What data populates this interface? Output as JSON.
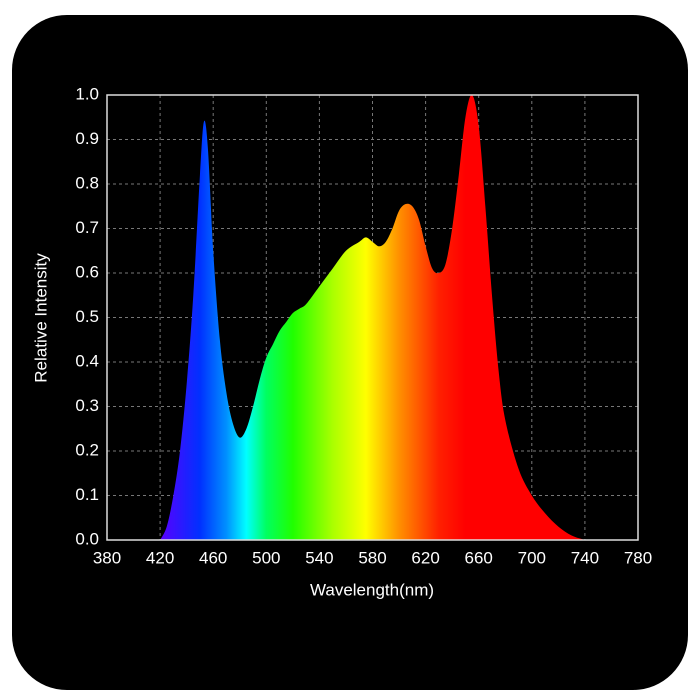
{
  "chart_data": {
    "type": "area",
    "xlabel": "Wavelength(nm)",
    "ylabel": "Relative Intensity",
    "x": [
      420,
      425,
      430,
      435,
      440,
      445,
      450,
      453,
      456,
      460,
      465,
      470,
      475,
      480,
      485,
      490,
      495,
      500,
      505,
      510,
      515,
      520,
      525,
      530,
      540,
      550,
      560,
      570,
      575,
      580,
      585,
      590,
      595,
      600,
      605,
      610,
      615,
      620,
      625,
      630,
      635,
      640,
      645,
      650,
      655,
      660,
      665,
      670,
      675,
      680,
      690,
      700,
      710,
      720,
      730,
      740
    ],
    "values": [
      0,
      0.03,
      0.1,
      0.2,
      0.35,
      0.55,
      0.82,
      0.94,
      0.88,
      0.65,
      0.45,
      0.33,
      0.26,
      0.23,
      0.25,
      0.3,
      0.36,
      0.41,
      0.44,
      0.47,
      0.49,
      0.51,
      0.52,
      0.53,
      0.57,
      0.61,
      0.65,
      0.67,
      0.68,
      0.67,
      0.66,
      0.67,
      0.7,
      0.74,
      0.755,
      0.75,
      0.72,
      0.66,
      0.61,
      0.6,
      0.62,
      0.7,
      0.82,
      0.95,
      1.0,
      0.93,
      0.75,
      0.55,
      0.38,
      0.27,
      0.16,
      0.1,
      0.06,
      0.03,
      0.01,
      0
    ],
    "xlim": [
      380,
      780
    ],
    "ylim": [
      0,
      1
    ],
    "xticks": [
      380,
      420,
      460,
      500,
      540,
      580,
      620,
      660,
      700,
      740,
      780
    ],
    "yticks": [
      {
        "value": 0,
        "label": "0.0"
      },
      0.1,
      0.2,
      0.3,
      0.4,
      0.5,
      0.6,
      0.7,
      0.8,
      0.9,
      {
        "value": 1,
        "label": "1.0"
      }
    ],
    "grid": true
  }
}
